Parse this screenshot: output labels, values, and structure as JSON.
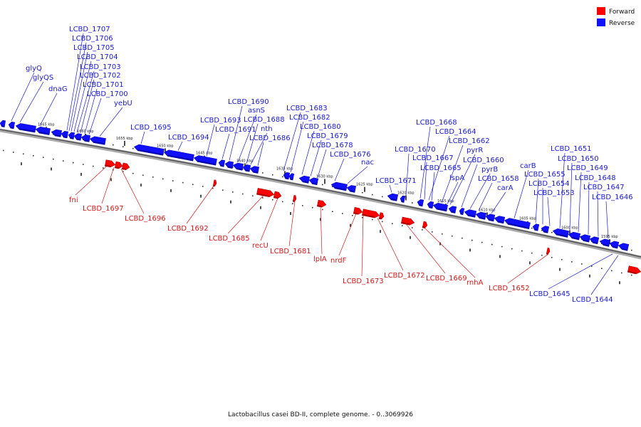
{
  "legend": {
    "forward_label": "Forward",
    "reverse_label": "Reverse",
    "forward_color": "#ff0000",
    "reverse_color": "#1010ff"
  },
  "caption": "Lactobacillus casei BD-II, complete genome. - 0..3069926",
  "position_labels": [
    "1665 kbp",
    "1660 kbp",
    "1655 kbp",
    "1650 kbp",
    "1645 kbp",
    "1640 kbp",
    "1635 kbp",
    "1630 kbp",
    "1625 kbp",
    "1620 kbp",
    "1615 kbp",
    "1610 kbp",
    "1605 kbp",
    "1600 kbp",
    "1595 kbp"
  ],
  "reverse_genes": [
    "LCBD_1707",
    "LCBD_1706",
    "LCBD_1705",
    "LCBD_1704",
    "LCBD_1703",
    "LCBD_1702",
    "LCBD_1701",
    "LCBD_1700",
    "glyQ",
    "glyQS",
    "dnaG",
    "yebU",
    "LCBD_1695",
    "LCBD_1694",
    "LCBD_1693",
    "LCBD_1691",
    "LCBD_1690",
    "asnS",
    "LCBD_1688",
    "nth",
    "LCBD_1686",
    "LCBD_1683",
    "LCBD_1682",
    "LCBD_1680",
    "LCBD_1679",
    "LCBD_1678",
    "LCBD_1676",
    "nac",
    "LCBD_1671",
    "LCBD_1668",
    "LCBD_1664",
    "LCBD_1670",
    "LCBD_1667",
    "LCBD_1665",
    "LCBD_1662",
    "pyrR",
    "lspA",
    "LCBD_1660",
    "pyrB",
    "LCBD_1658",
    "carA",
    "carB",
    "LCBD_1655",
    "LCBD_1654",
    "LCBD_1653",
    "LCBD_1651",
    "LCBD_1650",
    "LCBD_1649",
    "LCBD_1648",
    "LCBD_1647",
    "LCBD_1646",
    "LCBD_1645",
    "LCBD_1644"
  ],
  "forward_genes": [
    "fni",
    "LCBD_1697",
    "LCBD_1696",
    "LCBD_1692",
    "LCBD_1685",
    "recU",
    "LCBD_1681",
    "lplA",
    "nrdF",
    "LCBD_1673",
    "LCBD_1672",
    "LCBD_1669",
    "rnhA",
    "LCBD_1652"
  ]
}
